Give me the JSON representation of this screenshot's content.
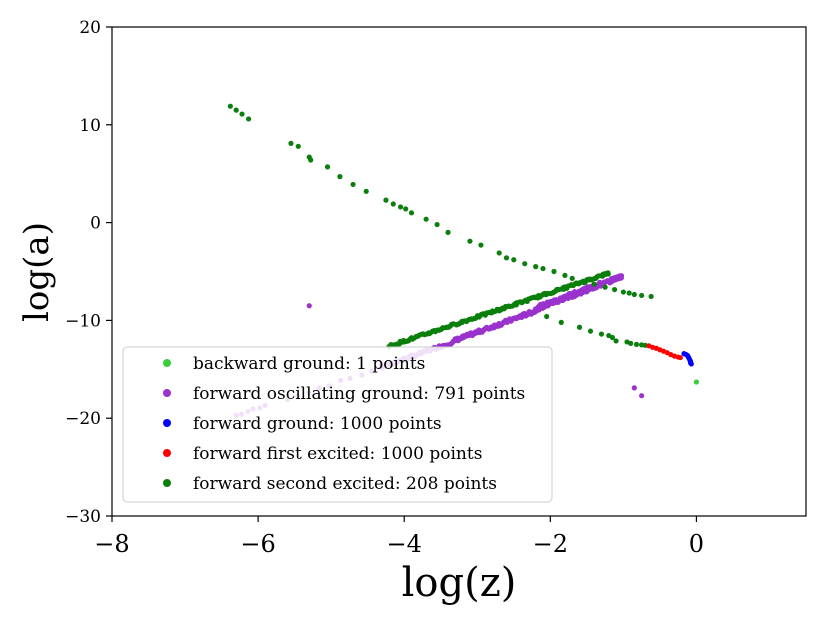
{
  "chart_data": {
    "type": "scatter",
    "title": "",
    "xlabel": "log(z)",
    "ylabel": "log(a)",
    "xlim": [
      -8,
      1.5
    ],
    "ylim": [
      -30,
      20
    ],
    "x_ticks": [
      -8,
      -6,
      -4,
      -2,
      0
    ],
    "x_tick_labels": [
      "−8",
      "−6",
      "−4",
      "−2",
      "0"
    ],
    "y_ticks": [
      -30,
      -20,
      -10,
      0,
      10,
      20
    ],
    "y_tick_labels": [
      "−30",
      "−20",
      "−10",
      "0",
      "10",
      "20"
    ],
    "grid": false,
    "legend_position": "lower-left",
    "series": [
      {
        "name": "backward ground: 1 points",
        "color": "#3ccd3c",
        "points": [
          [
            0.0,
            -16.3
          ]
        ]
      },
      {
        "name": "forward oscillating ground: 791 points",
        "color": "#9a32cd",
        "segments": [
          {
            "x_start": -6.3,
            "x_end": -5.9,
            "slope": 2.43,
            "intercept": -4.4,
            "n": 6,
            "jitter": 0.12
          },
          {
            "x_start": -5.6,
            "x_end": -4.3,
            "slope": 2.43,
            "intercept": -4.4,
            "n": 10,
            "jitter": 0.1
          },
          {
            "x_start": -4.3,
            "x_end": -3.3,
            "slope": 2.6,
            "intercept": -3.55,
            "n": 55,
            "jitter": 0.15
          },
          {
            "x_start": -3.3,
            "x_end": -2.2,
            "slope": 2.72,
            "intercept": -3.05,
            "n": 90,
            "jitter": 0.18
          },
          {
            "x_start": -2.2,
            "x_end": -1.3,
            "slope": 2.82,
            "intercept": -2.6,
            "n": 120,
            "jitter": 0.25
          },
          {
            "x_start": -1.3,
            "x_end": -1.02,
            "slope": 3.1,
            "intercept": -2.3,
            "n": 25,
            "jitter": 0.18
          }
        ],
        "extra_points": [
          [
            -0.85,
            -16.9
          ],
          [
            -0.75,
            -17.7
          ],
          [
            -5.3,
            -8.5
          ]
        ]
      },
      {
        "name": "forward ground: 1000 points",
        "color": "#0000ff",
        "points": [
          [
            -0.17,
            -13.4
          ],
          [
            -0.14,
            -13.5
          ],
          [
            -0.12,
            -13.6
          ],
          [
            -0.11,
            -13.75
          ],
          [
            -0.1,
            -13.9
          ],
          [
            -0.09,
            -14.05
          ],
          [
            -0.08,
            -14.2
          ],
          [
            -0.08,
            -14.35
          ],
          [
            -0.07,
            -14.45
          ]
        ]
      },
      {
        "name": "forward first excited: 1000 points",
        "color": "#ff0000",
        "points": [
          [
            -0.65,
            -12.6
          ],
          [
            -0.6,
            -12.75
          ],
          [
            -0.55,
            -12.85
          ],
          [
            -0.5,
            -13.0
          ],
          [
            -0.45,
            -13.15
          ],
          [
            -0.4,
            -13.3
          ],
          [
            -0.35,
            -13.5
          ],
          [
            -0.3,
            -13.65
          ],
          [
            -0.25,
            -13.75
          ],
          [
            -0.22,
            -13.8
          ]
        ]
      },
      {
        "name": "forward second excited: 208 points",
        "color": "#0b7f0b",
        "points": [
          [
            -6.38,
            11.9
          ],
          [
            -6.3,
            11.5
          ],
          [
            -6.22,
            11.1
          ],
          [
            -6.13,
            10.6
          ],
          [
            -5.55,
            8.1
          ],
          [
            -5.45,
            7.8
          ],
          [
            -5.3,
            6.7
          ],
          [
            -5.28,
            6.4
          ],
          [
            -5.05,
            5.7
          ],
          [
            -4.88,
            4.7
          ],
          [
            -4.7,
            3.9
          ],
          [
            -4.52,
            3.2
          ],
          [
            -4.25,
            2.3
          ],
          [
            -4.15,
            1.9
          ],
          [
            -4.05,
            1.6
          ],
          [
            -3.98,
            1.4
          ],
          [
            -3.9,
            1.0
          ],
          [
            -3.7,
            0.35
          ],
          [
            -3.55,
            -0.2
          ],
          [
            -3.4,
            -1.0
          ],
          [
            -3.1,
            -1.9
          ],
          [
            -2.95,
            -2.3
          ],
          [
            -2.7,
            -3.1
          ],
          [
            -2.6,
            -3.6
          ],
          [
            -2.5,
            -3.8
          ],
          [
            -2.35,
            -4.2
          ],
          [
            -2.2,
            -4.5
          ],
          [
            -2.1,
            -4.7
          ],
          [
            -1.95,
            -5.0
          ],
          [
            -1.8,
            -5.4
          ],
          [
            -1.7,
            -5.7
          ],
          [
            -1.55,
            -6.0
          ],
          [
            -1.4,
            -6.3
          ],
          [
            -1.25,
            -6.6
          ],
          [
            -1.12,
            -6.85
          ],
          [
            -1.0,
            -7.1
          ],
          [
            -0.92,
            -7.2
          ],
          [
            -0.85,
            -7.35
          ],
          [
            -0.75,
            -7.45
          ],
          [
            -0.62,
            -7.55
          ]
        ],
        "dense_segment": {
          "x_start": -4.2,
          "x_end": -1.2,
          "slope": 2.48,
          "intercept": -2.2,
          "n": 160,
          "jitter": 0.12
        },
        "tail_points": [
          [
            -1.1,
            -12.1
          ],
          [
            -0.95,
            -12.2
          ],
          [
            -0.9,
            -12.35
          ],
          [
            -0.82,
            -12.45
          ],
          [
            -0.75,
            -12.5
          ],
          [
            -0.7,
            -12.55
          ],
          [
            -2.05,
            -9.6
          ],
          [
            -1.85,
            -10.2
          ],
          [
            -1.6,
            -10.7
          ],
          [
            -1.45,
            -11.1
          ],
          [
            -1.3,
            -11.4
          ],
          [
            -1.2,
            -11.55
          ],
          [
            -1.15,
            -11.75
          ]
        ]
      }
    ]
  }
}
